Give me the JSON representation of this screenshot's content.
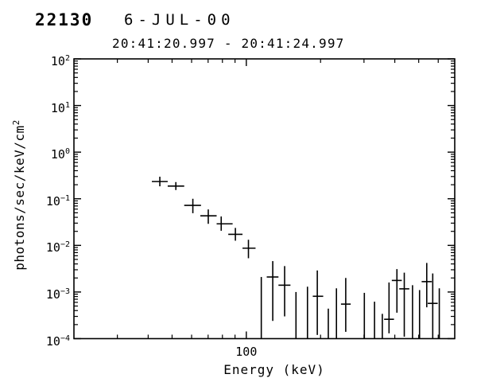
{
  "header": {
    "burst_id": "22130",
    "date": "6-JUL-00",
    "time_range": "20:41:20.997 - 20:41:24.997"
  },
  "chart_data": {
    "type": "scatter",
    "title": "22130 6-JUL-00",
    "subtitle": "20:41:20.997 - 20:41:24.997",
    "xlabel": "Energy (keV)",
    "ylabel": "photons/sec/keV/cm^2",
    "ylabel_base": "photons/sec/keV/cm",
    "ylabel_sup": "2",
    "x_scale": "log",
    "y_scale": "log",
    "xlim": [
      20,
      700
    ],
    "ylim": [
      0.0001,
      100
    ],
    "grid": "off",
    "legend": "none",
    "marker": "plus-with-error-bars",
    "line_color": "#000000",
    "background_color": "#ffffff",
    "x_major_ticks": [
      100
    ],
    "x_major_tick_labels": [
      "100"
    ],
    "x_minor_ticks": [
      30,
      40,
      50,
      60,
      70,
      80,
      90,
      200,
      300,
      400,
      500,
      600
    ],
    "y_tick_exponents": [
      2,
      1,
      0,
      -1,
      -2,
      -3,
      -4
    ],
    "y_tick_labels": [
      "10^2",
      "10^1",
      "10^0",
      "10^-1",
      "10^-2",
      "10^-3",
      "10^-4"
    ],
    "points": [
      {
        "e": 44.6,
        "e_lo": 41.4,
        "e_hi": 48.0,
        "f": 0.234,
        "f_lo": 0.185,
        "f_hi": 0.297
      },
      {
        "e": 51.8,
        "e_lo": 48.0,
        "e_hi": 56.0,
        "f": 0.187,
        "f_lo": 0.154,
        "f_hi": 0.228
      },
      {
        "e": 60.7,
        "e_lo": 56.0,
        "e_hi": 65.5,
        "f": 0.072,
        "f_lo": 0.049,
        "f_hi": 0.1
      },
      {
        "e": 70.1,
        "e_lo": 65.1,
        "e_hi": 75.8,
        "f": 0.043,
        "f_lo": 0.029,
        "f_hi": 0.059
      },
      {
        "e": 79.1,
        "e_lo": 75.8,
        "e_hi": 88.0,
        "f": 0.029,
        "f_lo": 0.0206,
        "f_hi": 0.0417
      },
      {
        "e": 90.3,
        "e_lo": 84.5,
        "e_hi": 96.5,
        "f": 0.0173,
        "f_lo": 0.0126,
        "f_hi": 0.0237
      },
      {
        "e": 102,
        "e_lo": 96.5,
        "e_hi": 109,
        "f": 0.0087,
        "f_lo": 0.0053,
        "f_hi": 0.0132
      },
      {
        "e": 115,
        "e_lo": 109,
        "e_hi": 121,
        "f": null,
        "f_lo": 0.0001,
        "f_hi": 0.0021
      },
      {
        "e": 128,
        "e_lo": 121,
        "e_hi": 135,
        "f": 0.0021,
        "f_lo": 0.00024,
        "f_hi": 0.0046
      },
      {
        "e": 143,
        "e_lo": 135,
        "e_hi": 151,
        "f": 0.0014,
        "f_lo": 0.0003,
        "f_hi": 0.0036
      },
      {
        "e": 159,
        "e_lo": 151,
        "e_hi": 168,
        "f": null,
        "f_lo": 0.0001,
        "f_hi": 0.001
      },
      {
        "e": 177,
        "e_lo": 168,
        "e_hi": 186,
        "f": null,
        "f_lo": 0.0001,
        "f_hi": 0.0013
      },
      {
        "e": 194,
        "e_lo": 186,
        "e_hi": 205,
        "f": 0.00081,
        "f_lo": 0.00012,
        "f_hi": 0.0029
      },
      {
        "e": 215,
        "e_lo": 205,
        "e_hi": 223,
        "f": null,
        "f_lo": 0.0001,
        "f_hi": 0.00044
      },
      {
        "e": 232,
        "e_lo": 223,
        "e_hi": 242,
        "f": null,
        "f_lo": 0.0001,
        "f_hi": 0.0012
      },
      {
        "e": 253,
        "e_lo": 242,
        "e_hi": 265,
        "f": 0.00055,
        "f_lo": 0.00014,
        "f_hi": 0.002
      },
      {
        "e": 301,
        "e_lo": 287,
        "e_hi": 315,
        "f": null,
        "f_lo": 0.0001,
        "f_hi": 0.00096
      },
      {
        "e": 331,
        "e_lo": 316,
        "e_hi": 347,
        "f": null,
        "f_lo": 0.0001,
        "f_hi": 0.00062
      },
      {
        "e": 356,
        "e_lo": 340,
        "e_hi": 373,
        "f": null,
        "f_lo": 0.0001,
        "f_hi": 0.00034
      },
      {
        "e": 379,
        "e_lo": 362,
        "e_hi": 397,
        "f": 0.00026,
        "f_lo": 0.00013,
        "f_hi": 0.0016
      },
      {
        "e": 408,
        "e_lo": 389,
        "e_hi": 427,
        "f": 0.00177,
        "f_lo": 0.00036,
        "f_hi": 0.0031
      },
      {
        "e": 437,
        "e_lo": 417,
        "e_hi": 458,
        "f": 0.00117,
        "f_lo": 0.00011,
        "f_hi": 0.0026
      },
      {
        "e": 472,
        "e_lo": 450,
        "e_hi": 494,
        "f": null,
        "f_lo": 0.0001,
        "f_hi": 0.0014
      },
      {
        "e": 504,
        "e_lo": 481,
        "e_hi": 528,
        "f": null,
        "f_lo": 0.0001,
        "f_hi": 0.0011
      },
      {
        "e": 539,
        "e_lo": 514,
        "e_hi": 565,
        "f": 0.00167,
        "f_lo": 0.00047,
        "f_hi": 0.0042
      },
      {
        "e": 570,
        "e_lo": 544,
        "e_hi": 597,
        "f": 0.00057,
        "f_lo": 0.0001,
        "f_hi": 0.0025
      },
      {
        "e": 606,
        "e_lo": 578,
        "e_hi": 635,
        "f": null,
        "f_lo": 0.0001,
        "f_hi": 0.0012
      }
    ]
  }
}
